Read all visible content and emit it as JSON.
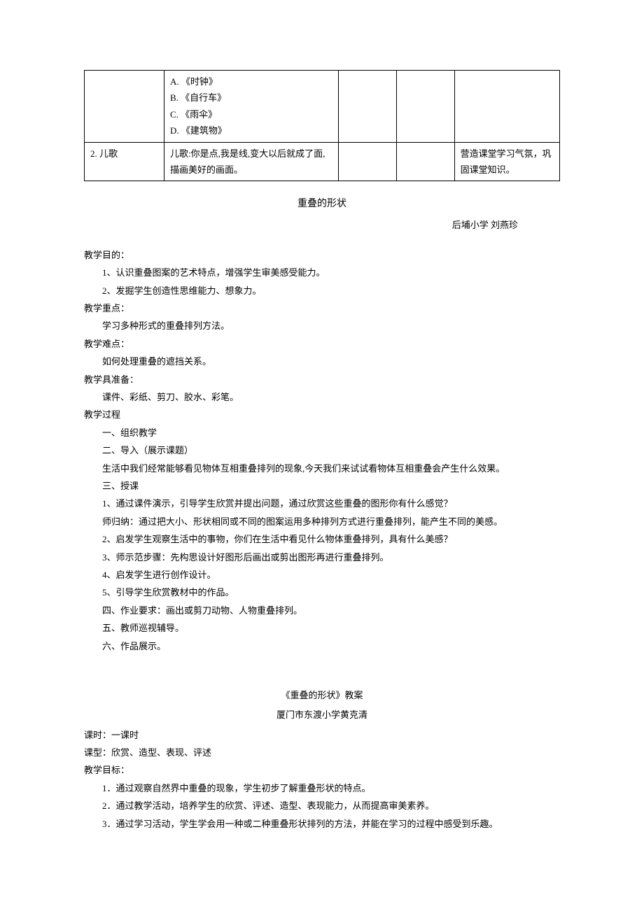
{
  "table": {
    "row1": {
      "col1": "",
      "col2_a": "A. 《时钟》",
      "col2_b": "B.  《自行车》",
      "col2_c": "C.  《雨伞》",
      "col2_d": "D.  《建筑物》",
      "col3": "",
      "col4": "",
      "col5": ""
    },
    "row2": {
      "col1": "2. 儿歌",
      "col2": "儿歌:你是点,我是线,变大以后就成了面,描画美好的画面。",
      "col3": "",
      "col4": "",
      "col5": "营造课堂学习气氛，巩固课堂知识。"
    }
  },
  "doc1": {
    "title": "重叠的形状",
    "author": "后埔小学 刘燕珍",
    "h_purpose": "教学目的：",
    "purpose1": "1、认识重叠图案的艺术特点，增强学生审美感受能力。",
    "purpose2": "2、发掘学生创造性思维能力、想象力。",
    "h_focus": "教学重点：",
    "focus1": "学习多种形式的重叠排列方法。",
    "h_difficulty": "教学难点：",
    "difficulty1": "如何处理重叠的遮挡关系。",
    "h_prep": "教学具准备：",
    "prep1": "课件、彩纸、剪刀、胶水、彩笔。",
    "h_process": "教学过程",
    "p1": "一、组织教学",
    "p2": "二、导入（展示课题）",
    "p3": "生活中我们经常能够看见物体互相重叠排列的现象,今天我们来试试看物体互相重叠会产生什么效果。",
    "p4": "三、授课",
    "p5": "1、通过课件演示，引导学生欣赏并提出问题，通过欣赏这些重叠的图形你有什么感觉？",
    "p6": "师归纳：通过把大小、形状相同或不同的图案运用多种排列方式进行重叠排列，能产生不同的美感。",
    "p7": "2、启发学生观察生活中的事物，你们在生活中看见什么物体重叠排列，具有什么美感？",
    "p8": "3、师示范步骤：先构思设计好图形后画出或剪出图形再进行重叠排列。",
    "p9": "4、启发学生进行创作设计。",
    "p10": "5、引导学生欣赏教材中的作品。",
    "p11": "四、作业要求：画出或剪刀动物、人物重叠排列。",
    "p12": "五、教师巡视辅导。",
    "p13": "六、作品展示。"
  },
  "doc2": {
    "title": "《重叠的形状》教案",
    "subtitle": "厦门市东渡小学黄克清",
    "line1": "课时：一课时",
    "line2": "课型：欣赏、造型、表现、评述",
    "line3": "教学目标：",
    "goal1": "1．通过观察自然界中重叠的现象，学生初步了解重叠形状的特点。",
    "goal2": "2．通过教学活动，培养学生的欣赏、评述、造型、表现能力，从而提高审美素养。",
    "goal3": "3．通过学习活动，学生学会用一种或二种重叠形状排列的方法，并能在学习的过程中感受到乐趣。"
  }
}
